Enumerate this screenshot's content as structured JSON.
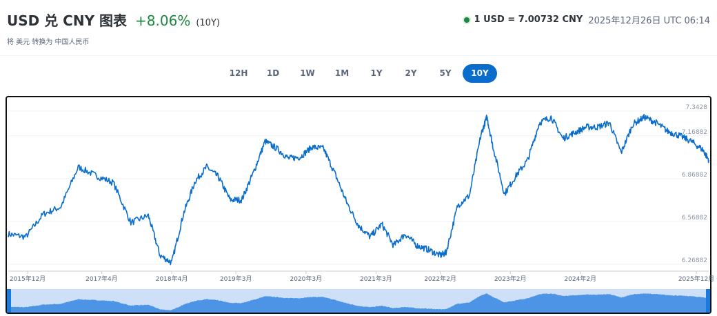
{
  "header": {
    "title": "USD 兑 CNY 图表",
    "change": "+8.06%",
    "range": "(10Y)",
    "subtitle": "将 美元 转换为 中国人民币"
  },
  "rate": {
    "value": "1 USD = 7.00732 CNY",
    "time": "2025年12月26日 UTC 06:14"
  },
  "tabs": [
    {
      "label": "12H",
      "active": false
    },
    {
      "label": "1D",
      "active": false
    },
    {
      "label": "1W",
      "active": false
    },
    {
      "label": "1M",
      "active": false
    },
    {
      "label": "1Y",
      "active": false
    },
    {
      "label": "2Y",
      "active": false
    },
    {
      "label": "5Y",
      "active": false
    },
    {
      "label": "10Y",
      "active": true
    }
  ],
  "colors": {
    "line": "#0a6ccb",
    "positive": "#1b8741",
    "navigator_fill": "#4d94e6",
    "navigator_bg": "#cde0f7",
    "navigator_handle": "#1a7ae0"
  },
  "chart_data": {
    "type": "line",
    "title": "USD 兑 CNY 图表",
    "xlabel": "",
    "ylabel": "",
    "x_ticks": [
      "2015年12月",
      "2017年4月",
      "2018年4月",
      "2019年3月",
      "2020年3月",
      "2021年3月",
      "2022年2月",
      "2023年2月",
      "2024年2月",
      "2025年12月"
    ],
    "y_ticks": [
      "7.3428",
      "7.16882",
      "6.86882",
      "6.56882",
      "6.26882"
    ],
    "ylim": [
      6.22,
      7.4
    ],
    "grid": true,
    "series": [
      {
        "x": [
          "2015-12",
          "2016-03",
          "2016-06",
          "2016-09",
          "2016-12",
          "2017-03",
          "2017-06",
          "2017-09",
          "2017-12",
          "2018-02",
          "2018-04",
          "2018-06",
          "2018-08",
          "2018-10",
          "2018-12",
          "2019-02",
          "2019-04",
          "2019-06",
          "2019-08",
          "2019-10",
          "2019-12",
          "2020-02",
          "2020-04",
          "2020-06",
          "2020-08",
          "2020-10",
          "2020-12",
          "2021-02",
          "2021-04",
          "2021-06",
          "2021-08",
          "2021-10",
          "2021-12",
          "2022-02",
          "2022-03",
          "2022-05",
          "2022-07",
          "2022-09",
          "2022-10",
          "2022-11",
          "2023-01",
          "2023-03",
          "2023-05",
          "2023-07",
          "2023-09",
          "2023-11",
          "2024-01",
          "2024-03",
          "2024-05",
          "2024-07",
          "2024-09",
          "2024-11",
          "2025-01",
          "2025-03",
          "2025-05",
          "2025-07",
          "2025-09",
          "2025-11",
          "2025-12"
        ],
        "values": [
          6.48,
          6.46,
          6.62,
          6.67,
          6.95,
          6.89,
          6.84,
          6.56,
          6.61,
          6.33,
          6.28,
          6.62,
          6.85,
          6.95,
          6.88,
          6.72,
          6.72,
          6.91,
          7.13,
          7.08,
          7.01,
          7.02,
          7.09,
          7.08,
          6.9,
          6.7,
          6.54,
          6.46,
          6.55,
          6.4,
          6.48,
          6.4,
          6.37,
          6.33,
          6.35,
          6.68,
          6.75,
          7.18,
          7.3,
          7.1,
          6.76,
          6.89,
          7.0,
          7.26,
          7.3,
          7.15,
          7.19,
          7.23,
          7.23,
          7.26,
          7.05,
          7.25,
          7.3,
          7.26,
          7.2,
          7.17,
          7.13,
          7.07,
          7.0
        ]
      }
    ]
  }
}
